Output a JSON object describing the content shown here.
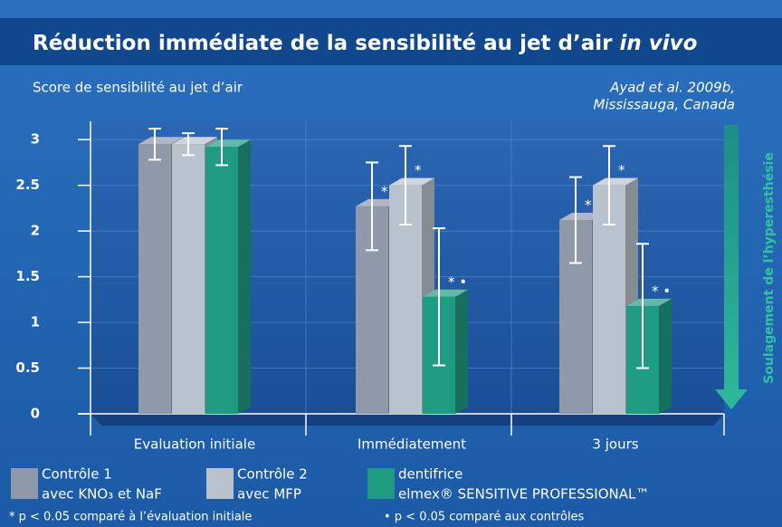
{
  "chart_data": {
    "type": "bar3d",
    "title": {
      "text": "Réduction immédiate de la sensibilité au jet d’air",
      "emphasis": "in vivo"
    },
    "y_label": "Score de sensibilité au jet d’air",
    "source": [
      "Ayad et al. 2009b,",
      "Mississauga, Canada"
    ],
    "side_label": "Soulagement de l’hyperesthésie",
    "categories": [
      "Evaluation initiale",
      "Immédiatement",
      "3 jours"
    ],
    "series": [
      {
        "name": [
          "Contrôle 1",
          "avec KNO₃ et NaF"
        ],
        "color": "#8f99aa",
        "values": [
          2.95,
          2.27,
          2.12
        ],
        "errors": [
          0.17,
          0.48,
          0.47
        ],
        "markers": [
          null,
          "*",
          "*"
        ]
      },
      {
        "name": [
          "Contrôle 2",
          "avec MFP"
        ],
        "color": "#b9c3cd",
        "values": [
          2.95,
          2.5,
          2.5
        ],
        "errors": [
          0.12,
          0.43,
          0.43
        ],
        "markers": [
          null,
          "*",
          "*"
        ]
      },
      {
        "name": [
          "dentifrice",
          "elmex® SENSITIVE PROFESSIONAL™"
        ],
        "color": "#1f9b82",
        "values": [
          2.92,
          1.28,
          1.18
        ],
        "errors": [
          0.2,
          0.75,
          0.68
        ],
        "markers": [
          null,
          "* •",
          "* •"
        ]
      }
    ],
    "ylim": [
      0,
      3.2
    ],
    "yticks": [
      0,
      0.5,
      1,
      1.5,
      2,
      2.5,
      3
    ],
    "grid": true,
    "footnotes": [
      "* p < 0.05 comparé à l’évaluation initiale",
      "• p < 0.05 comparé aux contrôles"
    ]
  }
}
